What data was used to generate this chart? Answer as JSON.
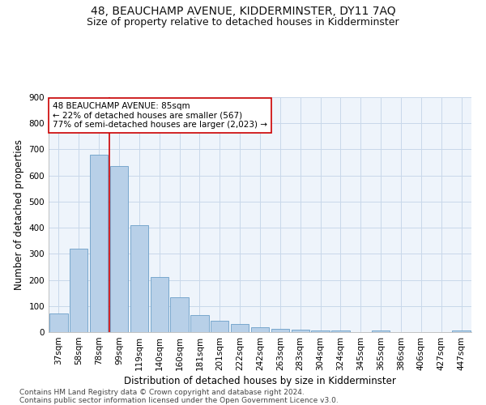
{
  "title": "48, BEAUCHAMP AVENUE, KIDDERMINSTER, DY11 7AQ",
  "subtitle": "Size of property relative to detached houses in Kidderminster",
  "xlabel": "Distribution of detached houses by size in Kidderminster",
  "ylabel": "Number of detached properties",
  "categories": [
    "37sqm",
    "58sqm",
    "78sqm",
    "99sqm",
    "119sqm",
    "140sqm",
    "160sqm",
    "181sqm",
    "201sqm",
    "222sqm",
    "242sqm",
    "263sqm",
    "283sqm",
    "304sqm",
    "324sqm",
    "345sqm",
    "365sqm",
    "386sqm",
    "406sqm",
    "427sqm",
    "447sqm"
  ],
  "values": [
    70,
    320,
    680,
    635,
    410,
    210,
    135,
    65,
    45,
    30,
    20,
    12,
    8,
    5,
    5,
    0,
    5,
    0,
    0,
    0,
    5
  ],
  "bar_color": "#b8d0e8",
  "bar_edge_color": "#6a9fc8",
  "grid_color": "#c8d8ea",
  "bg_color": "#eef4fb",
  "property_label": "48 BEAUCHAMP AVENUE: 85sqm",
  "annotation_line1": "← 22% of detached houses are smaller (567)",
  "annotation_line2": "77% of semi-detached houses are larger (2,023) →",
  "vline_bar_index": 2,
  "vline_color": "#cc0000",
  "annotation_box_color": "#ffffff",
  "annotation_box_edge": "#cc0000",
  "footer_line1": "Contains HM Land Registry data © Crown copyright and database right 2024.",
  "footer_line2": "Contains public sector information licensed under the Open Government Licence v3.0.",
  "ylim": [
    0,
    900
  ],
  "yticks": [
    0,
    100,
    200,
    300,
    400,
    500,
    600,
    700,
    800,
    900
  ],
  "title_fontsize": 10,
  "subtitle_fontsize": 9,
  "xlabel_fontsize": 8.5,
  "ylabel_fontsize": 8.5,
  "tick_fontsize": 7.5,
  "footer_fontsize": 6.5,
  "annotation_fontsize": 7.5
}
